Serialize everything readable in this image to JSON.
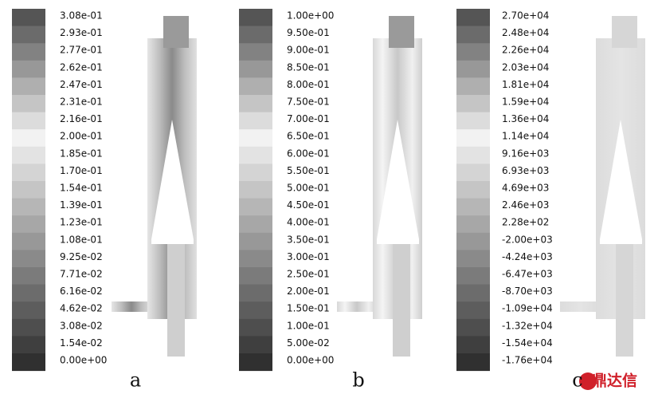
{
  "panels": [
    {
      "label": "a",
      "colorbar_labels": [
        "3.08e-01",
        "2.93e-01",
        "2.77e-01",
        "2.62e-01",
        "2.47e-01",
        "2.31e-01",
        "2.16e-01",
        "2.00e-01",
        "1.85e-01",
        "1.70e-01",
        "1.54e-01",
        "1.39e-01",
        "1.23e-01",
        "1.08e-01",
        "9.25e-02",
        "7.71e-02",
        "6.16e-02",
        "4.62e-02",
        "3.08e-02",
        "1.54e-02",
        "0.00e+00"
      ]
    },
    {
      "label": "b",
      "colorbar_labels": [
        "1.00e+00",
        "9.50e-01",
        "9.00e-01",
        "8.50e-01",
        "8.00e-01",
        "7.50e-01",
        "7.00e-01",
        "6.50e-01",
        "6.00e-01",
        "5.50e-01",
        "5.00e-01",
        "4.50e-01",
        "4.00e-01",
        "3.50e-01",
        "3.00e-01",
        "2.50e-01",
        "2.00e-01",
        "1.50e-01",
        "1.00e-01",
        "5.00e-02",
        "0.00e+00"
      ]
    },
    {
      "label": "c",
      "colorbar_labels": [
        "2.70e+04",
        "2.48e+04",
        "2.26e+04",
        "2.03e+04",
        "1.81e+04",
        "1.59e+04",
        "1.36e+04",
        "1.14e+04",
        "9.16e+03",
        "6.93e+03",
        "4.69e+03",
        "2.46e+03",
        "2.28e+02",
        "-2.00e+03",
        "-4.24e+03",
        "-6.47e+03",
        "-8.70e+03",
        "-1.09e+04",
        "-1.32e+04",
        "-1.54e+04",
        "-1.76e+04"
      ]
    }
  ],
  "watermark": "鼎达信"
}
